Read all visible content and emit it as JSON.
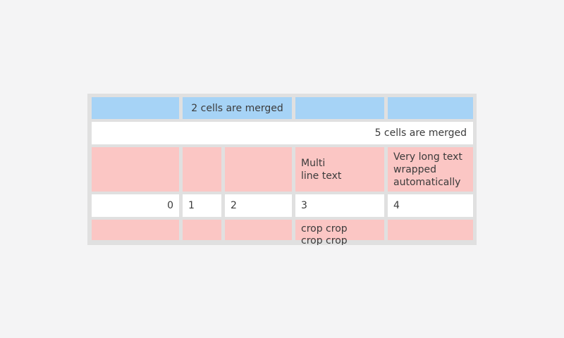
{
  "colors": {
    "page_background": "#f4f4f5",
    "table_background": "#e0e0e0",
    "cell_blue": "#a6d3f6",
    "cell_pink": "#fbc6c4",
    "cell_white": "#ffffff",
    "text": "#3b3b3b"
  },
  "table": {
    "rows": {
      "header": {
        "merged_label": "2 cells are merged"
      },
      "full_merge": {
        "label": "5 cells are merged"
      },
      "multiline": {
        "col4": "Multi\nline text",
        "col5": "Very long text wrapped automatically"
      },
      "numbers": [
        "0",
        "1",
        "2",
        "3",
        "4"
      ],
      "crop": {
        "col4": "crop crop crop crop"
      }
    }
  }
}
